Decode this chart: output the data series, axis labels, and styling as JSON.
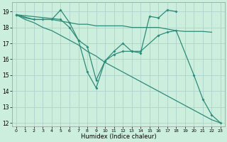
{
  "xlabel": "Humidex (Indice chaleur)",
  "background_color": "#cceedd",
  "grid_color": "#aacccc",
  "line_color": "#2e8b7a",
  "xlim": [
    -0.5,
    23.5
  ],
  "ylim": [
    11.8,
    19.6
  ],
  "yticks": [
    12,
    13,
    14,
    15,
    16,
    17,
    18,
    19
  ],
  "xticks": [
    0,
    1,
    2,
    3,
    4,
    5,
    6,
    7,
    8,
    9,
    10,
    11,
    12,
    13,
    14,
    15,
    16,
    17,
    18,
    19,
    20,
    21,
    22,
    23
  ],
  "line1_x": [
    0,
    1,
    2,
    3,
    4,
    5,
    6,
    7,
    8,
    9,
    10,
    11,
    12,
    13,
    14,
    15,
    16,
    17,
    18,
    19,
    20,
    21,
    22
  ],
  "line1_y": [
    18.8,
    18.6,
    18.5,
    18.5,
    18.5,
    18.4,
    18.3,
    18.2,
    18.2,
    18.1,
    18.1,
    18.1,
    18.1,
    18.0,
    18.0,
    18.0,
    18.0,
    17.9,
    17.8,
    17.75,
    17.75,
    17.75,
    17.7
  ],
  "line2_x": [
    0,
    2,
    3,
    4,
    5,
    6,
    7,
    8,
    9,
    10,
    11,
    12,
    13,
    14,
    15,
    16,
    17,
    18
  ],
  "line2_y": [
    18.8,
    18.5,
    18.5,
    18.5,
    19.1,
    18.3,
    17.2,
    15.2,
    14.2,
    15.9,
    16.5,
    17.0,
    16.5,
    16.4,
    18.7,
    18.6,
    19.1,
    19.0
  ],
  "line3_x": [
    0,
    1,
    2,
    3,
    4,
    5,
    6,
    7,
    8,
    9,
    10,
    11,
    12,
    13,
    14,
    15,
    16,
    17,
    18,
    19,
    20,
    21,
    22,
    23
  ],
  "line3_y": [
    18.8,
    18.5,
    18.3,
    18.0,
    17.8,
    17.5,
    17.2,
    16.9,
    16.5,
    16.2,
    15.8,
    15.5,
    15.2,
    14.9,
    14.6,
    14.3,
    14.0,
    13.7,
    13.4,
    13.1,
    12.8,
    12.5,
    12.2,
    12.0
  ],
  "line4_x": [
    0,
    5,
    6,
    7,
    8,
    9,
    10,
    11,
    12,
    13,
    14,
    16,
    17,
    18,
    20,
    21,
    22,
    23
  ],
  "line4_y": [
    18.8,
    18.5,
    18.0,
    17.2,
    16.8,
    14.7,
    15.9,
    16.3,
    16.5,
    16.5,
    16.5,
    17.5,
    17.7,
    17.8,
    15.0,
    13.5,
    12.5,
    12.0
  ]
}
